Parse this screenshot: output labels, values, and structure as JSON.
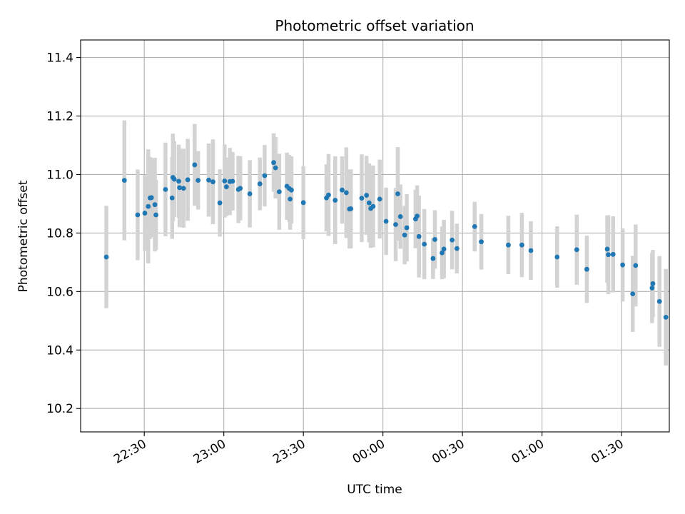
{
  "chart_data": {
    "type": "scatter",
    "title": "Photometric offset variation",
    "xlabel": "UTC time",
    "ylabel": "Photometric offset",
    "x_ticks": [
      "22:30",
      "23:00",
      "23:30",
      "00:00",
      "00:30",
      "01:00",
      "01:30"
    ],
    "x_tick_minutes": [
      0,
      30,
      60,
      90,
      120,
      150,
      180
    ],
    "xlim_minutes": [
      -24,
      198
    ],
    "y_ticks": [
      "10.2",
      "10.4",
      "10.6",
      "10.8",
      "11.0",
      "11.2",
      "11.4"
    ],
    "ylim": [
      10.12,
      11.46
    ],
    "grid": true,
    "marker_color": "#1f77b4",
    "errorbar_color": "#d3d3d3",
    "points_note": "x in minutes relative to 22:30 UTC",
    "points": [
      [
        -14.3,
        10.718,
        0.35
      ],
      [
        -7.5,
        10.98,
        0.41
      ],
      [
        -2.5,
        10.862,
        0.31
      ],
      [
        0.2,
        10.868,
        0.26
      ],
      [
        1.5,
        10.891,
        0.39
      ],
      [
        2.2,
        10.92,
        0.28
      ],
      [
        2.7,
        10.921,
        0.27
      ],
      [
        4.0,
        10.897,
        0.32
      ],
      [
        4.4,
        10.862,
        0.24
      ],
      [
        8.0,
        10.949,
        0.32
      ],
      [
        10.5,
        10.92,
        0.28
      ],
      [
        10.8,
        10.99,
        0.3
      ],
      [
        11.3,
        10.984,
        0.26
      ],
      [
        13.0,
        10.977,
        0.25
      ],
      [
        13.3,
        10.955,
        0.27
      ],
      [
        14.8,
        10.953,
        0.27
      ],
      [
        16.4,
        10.982,
        0.28
      ],
      [
        19.0,
        11.033,
        0.28
      ],
      [
        20.3,
        10.98,
        0.2
      ],
      [
        24.3,
        10.981,
        0.25
      ],
      [
        25.9,
        10.975,
        0.29
      ],
      [
        28.5,
        10.903,
        0.23
      ],
      [
        30.3,
        10.978,
        0.25
      ],
      [
        31.0,
        10.958,
        0.2
      ],
      [
        32.3,
        10.976,
        0.23
      ],
      [
        33.3,
        10.977,
        0.2
      ],
      [
        35.5,
        10.949,
        0.23
      ],
      [
        36.2,
        10.953,
        0.22
      ],
      [
        39.8,
        10.934,
        0.23
      ],
      [
        43.6,
        10.968,
        0.18
      ],
      [
        45.4,
        10.996,
        0.21
      ],
      [
        48.8,
        11.041,
        0.2
      ],
      [
        49.5,
        11.023,
        0.21
      ],
      [
        50.9,
        10.941,
        0.26
      ],
      [
        53.8,
        10.96,
        0.23
      ],
      [
        54.7,
        10.952,
        0.23
      ],
      [
        55.5,
        10.947,
        0.23
      ],
      [
        55.0,
        10.916,
        0.21
      ],
      [
        60.0,
        10.904,
        0.25
      ],
      [
        68.7,
        10.92,
        0.23
      ],
      [
        69.5,
        10.93,
        0.28
      ],
      [
        72.0,
        10.912,
        0.3
      ],
      [
        74.6,
        10.947,
        0.23
      ],
      [
        76.2,
        10.938,
        0.31
      ],
      [
        77.4,
        10.882,
        0.27
      ],
      [
        77.9,
        10.883,
        0.27
      ],
      [
        82.0,
        10.919,
        0.3
      ],
      [
        83.8,
        10.929,
        0.27
      ],
      [
        84.8,
        10.903,
        0.27
      ],
      [
        85.4,
        10.884,
        0.27
      ],
      [
        86.3,
        10.891,
        0.28
      ],
      [
        88.8,
        10.916,
        0.27
      ],
      [
        91.2,
        10.84,
        0.23
      ],
      [
        94.8,
        10.829,
        0.25
      ],
      [
        95.6,
        10.934,
        0.32
      ],
      [
        96.6,
        10.856,
        0.22
      ],
      [
        98.2,
        10.793,
        0.2
      ],
      [
        99.0,
        10.818,
        0.23
      ],
      [
        102.3,
        10.848,
        0.2
      ],
      [
        102.9,
        10.858,
        0.21
      ],
      [
        103.6,
        10.788,
        0.28
      ],
      [
        105.6,
        10.762,
        0.24
      ],
      [
        108.9,
        10.713,
        0.14
      ],
      [
        109.6,
        10.778,
        0.2
      ],
      [
        112.3,
        10.732,
        0.18
      ],
      [
        113.0,
        10.745,
        0.2
      ],
      [
        116.1,
        10.776,
        0.2
      ],
      [
        117.9,
        10.747,
        0.17
      ],
      [
        124.6,
        10.822,
        0.17
      ],
      [
        127.1,
        10.77,
        0.19
      ],
      [
        137.3,
        10.759,
        0.2
      ],
      [
        142.4,
        10.759,
        0.22
      ],
      [
        145.8,
        10.74,
        0.2
      ],
      [
        155.7,
        10.718,
        0.21
      ],
      [
        163.1,
        10.743,
        0.24
      ],
      [
        166.9,
        10.676,
        0.23
      ],
      [
        174.6,
        10.745,
        0.23
      ],
      [
        175.0,
        10.726,
        0.27
      ],
      [
        176.8,
        10.727,
        0.26
      ],
      [
        180.4,
        10.691,
        0.25
      ],
      [
        184.2,
        10.592,
        0.26
      ],
      [
        185.3,
        10.689,
        0.28
      ],
      [
        191.5,
        10.612,
        0.24
      ],
      [
        191.8,
        10.627,
        0.23
      ],
      [
        194.3,
        10.566,
        0.31
      ],
      [
        196.7,
        10.512,
        0.33
      ]
    ]
  }
}
